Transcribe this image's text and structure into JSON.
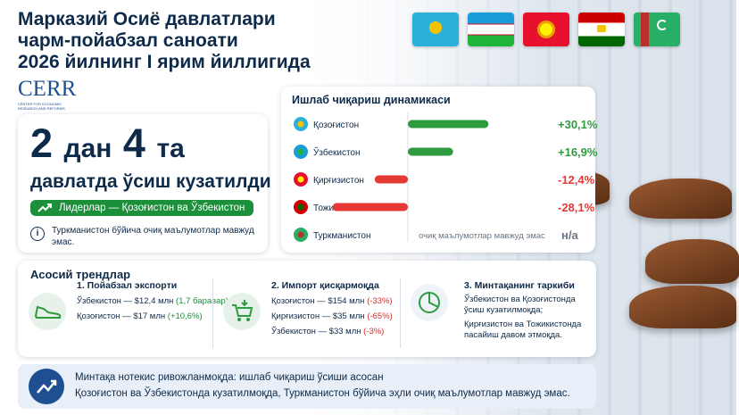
{
  "header": {
    "title_line1": "Марказий Осиё давлатлари",
    "title_line2": "чарм-пойабзал саноати",
    "title_line3": "2026 йилнинг I ярим йиллигида"
  },
  "logo": {
    "word": "CERR",
    "subtitle": "CENTER FOR ECONOMIC RESEARCH AND REFORMS"
  },
  "flags": [
    "kazakhstan-flag",
    "uzbekistan-flag",
    "kyrgyzstan-flag",
    "tajikistan-flag",
    "turkmenistan-flag"
  ],
  "summary": {
    "num1": "2",
    "word1": "дан",
    "num2": "4",
    "word2": "та",
    "line2": "давлатда ўсиш кузатилди",
    "leaders": "Лидерлар — Қозоғистон ва Ўзбекистон",
    "note": "Туркманистон бўйича очиқ маълумотлар мавжуд эмас."
  },
  "chart_data": {
    "type": "bar",
    "title": "Ишлаб чиқариш динамикаси",
    "categories": [
      "Қозоғистон",
      "Ўзбекистон",
      "Қирғизистон",
      "Тожикистон",
      "Туркманистон"
    ],
    "values": [
      30.1,
      16.9,
      -12.4,
      -28.1,
      null
    ],
    "labels": [
      "+30,1%",
      "+16,9%",
      "-12,4%",
      "-28,1%",
      "н/а"
    ],
    "no_data_text": "очиқ маълумотлар мавжуд эмас",
    "colors": {
      "positive": "#2e9b3e",
      "negative": "#e53935"
    },
    "xlim": [
      -30,
      32
    ],
    "grid": false
  },
  "trends": {
    "title": "Асосий трендлар",
    "col1": {
      "head": "1. Пойабзал экспорти",
      "l1_a": "Ўзбекистон — $12,4 млн",
      "l1_b": "(1,7 баравар)",
      "l2_a": "Қозоғистон — $17 млн",
      "l2_b": "(+10,6%)"
    },
    "col2": {
      "head": "2. Импорт қисқармоқда",
      "l1_a": "Қозоғистон — $154 млн",
      "l1_b": "(-33%)",
      "l2_a": "Қирғизистон — $35 млн",
      "l2_b": "(-65%)",
      "l3_a": "Ўзбекистон — $33 млн",
      "l3_b": "(-3%)"
    },
    "col3": {
      "head": "3. Минтақанинг таркиби",
      "text1": "Ўзбекистон ва Қозоғистонда ўсиш кузатилмоқда;",
      "text2": "Қирғизистон ва Тожикистонда пасайиш давом этмоқда."
    }
  },
  "footer": {
    "line1": "Минтақа нотекис ривожланмоқда: ишлаб чиқариш ўсиши асосан",
    "line2": "Қозоғистон ва Ўзбекистонда кузатилмоқда, Туркманистон бўйича эҳли очиқ маълумотлар мавжуд эмас."
  }
}
